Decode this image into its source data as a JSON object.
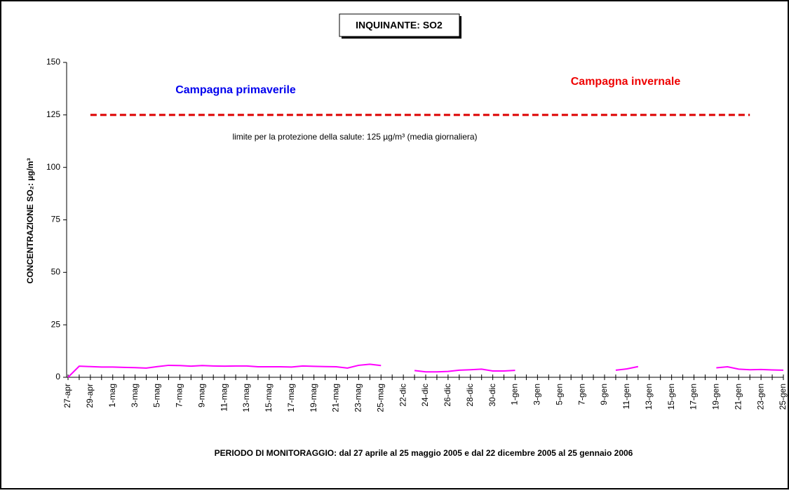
{
  "chart_data": {
    "type": "line",
    "title": "INQUINANTE: SO2",
    "ylabel": "CONCENTRAZIONE SO₂:  µg/m³",
    "xlabel": "PERIODO DI MONITORAGGIO: dal 27 aprile al 25 maggio 2005 e dal 22 dicembre 2005 al 25 gennaio 2006",
    "annotations": [
      {
        "text": "Campagna primaverile",
        "color": "#0000ee"
      },
      {
        "text": "Campagna invernale",
        "color": "#ee0000"
      },
      {
        "text": "limite per la protezione della salute: 125 µg/m³ (media giornaliera)",
        "color": "#000000"
      }
    ],
    "categories": [
      "27-apr",
      null,
      "29-apr",
      null,
      "1-mag",
      null,
      "3-mag",
      null,
      "5-mag",
      null,
      "7-mag",
      null,
      "9-mag",
      null,
      "11-mag",
      null,
      "13-mag",
      null,
      "15-mag",
      null,
      "17-mag",
      null,
      "19-mag",
      null,
      "21-mag",
      null,
      "23-mag",
      null,
      "25-mag",
      null,
      "22-dic",
      null,
      "24-dic",
      null,
      "26-dic",
      null,
      "28-dic",
      null,
      "30-dic",
      null,
      "1-gen",
      null,
      "3-gen",
      null,
      "5-gen",
      null,
      "7-gen",
      null,
      "9-gen",
      null,
      "11-gen",
      null,
      "13-gen",
      null,
      "15-gen",
      null,
      "17-gen",
      null,
      "19-gen",
      null,
      "21-gen",
      null,
      "23-gen",
      null,
      "25-gen"
    ],
    "series": [
      {
        "color": "#ff00ff",
        "values": [
          0,
          5.3,
          5.1,
          4.9,
          4.9,
          4.7,
          4.6,
          4.4,
          5.1,
          5.7,
          5.6,
          5.3,
          5.6,
          5.4,
          5.3,
          5.4,
          5.4,
          5.0,
          5.0,
          5.0,
          4.9,
          5.4,
          5.2,
          5.1,
          5.0,
          4.4,
          5.7,
          6.2,
          5.6,
          null,
          null,
          3.2,
          2.6,
          2.6,
          2.8,
          3.4,
          3.6,
          3.9,
          3.0,
          3.0,
          3.3,
          null,
          null,
          null,
          null,
          null,
          null,
          null,
          null,
          3.4,
          4.0,
          5.1,
          null,
          null,
          null,
          null,
          null,
          null,
          4.5,
          5.0,
          3.9,
          3.6,
          3.7,
          3.5,
          3.4
        ]
      },
      {
        "color": "#dd0000",
        "dashed": true,
        "values": [
          null,
          null,
          125,
          125,
          125,
          125,
          125,
          125,
          125,
          125,
          125,
          125,
          125,
          125,
          125,
          125,
          125,
          125,
          125,
          125,
          125,
          125,
          125,
          125,
          125,
          125,
          125,
          125,
          125,
          125,
          125,
          125,
          125,
          125,
          125,
          125,
          125,
          125,
          125,
          125,
          125,
          125,
          125,
          125,
          125,
          125,
          125,
          125,
          125,
          125,
          125,
          125,
          125,
          125,
          125,
          125,
          125,
          125,
          125,
          125,
          125,
          125,
          null,
          null,
          null
        ]
      }
    ],
    "ylim": [
      0,
      150
    ],
    "yticks": [
      0,
      25,
      50,
      75,
      100,
      125,
      150
    ],
    "grid": false
  }
}
